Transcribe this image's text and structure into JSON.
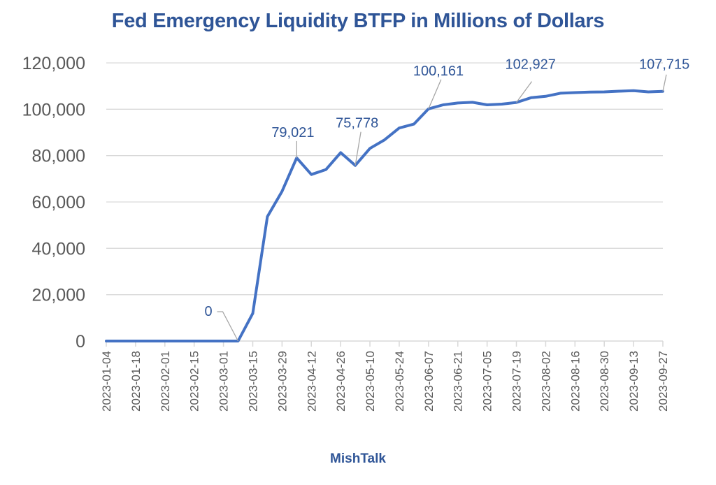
{
  "colors": {
    "title": "#2F5597",
    "line": "#4472C4",
    "label": "#2F5597",
    "grid": "#D9D9D9",
    "axis_text": "#595959",
    "leader": "#A6A6A6"
  },
  "footer": "MishTalk",
  "chart_data": {
    "type": "line",
    "title": "Fed Emergency Liquidity BTFP in Millions of Dollars",
    "xlabel": "",
    "ylabel": "",
    "ylim": [
      0,
      120000
    ],
    "yticks": [
      0,
      20000,
      40000,
      60000,
      80000,
      100000,
      120000
    ],
    "ytick_labels": [
      "0",
      "20,000",
      "40,000",
      "60,000",
      "80,000",
      "100,000",
      "120,000"
    ],
    "grid": true,
    "legend": "none",
    "xtick_labels": [
      "2023-01-04",
      "2023-01-18",
      "2023-02-01",
      "2023-02-15",
      "2023-03-01",
      "2023-03-15",
      "2023-03-29",
      "2023-04-12",
      "2023-04-26",
      "2023-05-10",
      "2023-05-24",
      "2023-06-07",
      "2023-06-21",
      "2023-07-05",
      "2023-07-19",
      "2023-08-02",
      "2023-08-16",
      "2023-08-30",
      "2023-09-13",
      "2023-09-27"
    ],
    "series": [
      {
        "name": "BTFP",
        "x": [
          "2023-01-04",
          "2023-01-11",
          "2023-01-18",
          "2023-01-25",
          "2023-02-01",
          "2023-02-08",
          "2023-02-15",
          "2023-02-22",
          "2023-03-01",
          "2023-03-08",
          "2023-03-15",
          "2023-03-22",
          "2023-03-29",
          "2023-04-05",
          "2023-04-12",
          "2023-04-19",
          "2023-04-26",
          "2023-05-03",
          "2023-05-10",
          "2023-05-17",
          "2023-05-24",
          "2023-05-31",
          "2023-06-07",
          "2023-06-14",
          "2023-06-21",
          "2023-06-28",
          "2023-07-05",
          "2023-07-12",
          "2023-07-19",
          "2023-07-26",
          "2023-08-02",
          "2023-08-09",
          "2023-08-16",
          "2023-08-23",
          "2023-08-30",
          "2023-09-06",
          "2023-09-13",
          "2023-09-20",
          "2023-09-27"
        ],
        "values": [
          0,
          0,
          0,
          0,
          0,
          0,
          0,
          0,
          0,
          0,
          11943,
          53669,
          64616,
          79021,
          71837,
          73980,
          81277,
          75778,
          83125,
          86800,
          91900,
          93600,
          100161,
          101900,
          102700,
          103000,
          101900,
          102200,
          102927,
          105000,
          105600,
          106900,
          107200,
          107400,
          107500,
          107800,
          108000,
          107500,
          107715
        ]
      }
    ],
    "annotations": [
      {
        "x": "2023-03-08",
        "text": "0"
      },
      {
        "x": "2023-04-05",
        "text": "79,021"
      },
      {
        "x": "2023-05-03",
        "text": "75,778"
      },
      {
        "x": "2023-06-07",
        "text": "100,161"
      },
      {
        "x": "2023-07-19",
        "text": "102,927"
      },
      {
        "x": "2023-09-27",
        "text": "107,715"
      }
    ]
  }
}
